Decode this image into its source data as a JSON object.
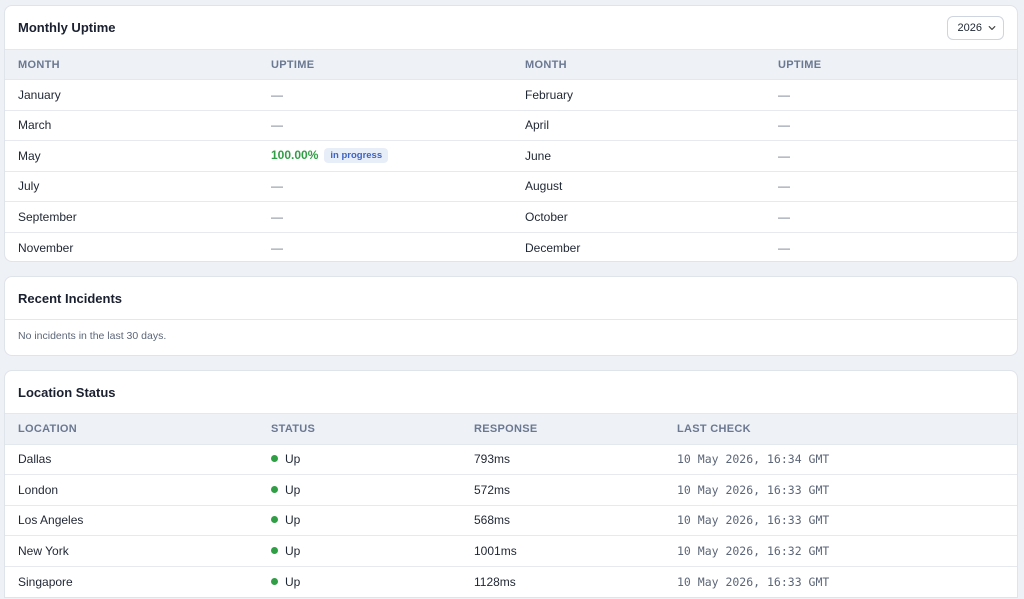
{
  "uptime": {
    "title": "Monthly Uptime",
    "year": "2026",
    "headers": [
      "MONTH",
      "UPTIME",
      "MONTH",
      "UPTIME"
    ],
    "rows": [
      {
        "m1": "January",
        "u1": "—",
        "m2": "February",
        "u2": "—"
      },
      {
        "m1": "March",
        "u1": "—",
        "m2": "April",
        "u2": "—"
      },
      {
        "m1": "May",
        "u1": "100.00%",
        "u1_badge": "in progress",
        "m2": "June",
        "u2": "—"
      },
      {
        "m1": "July",
        "u1": "—",
        "m2": "August",
        "u2": "—"
      },
      {
        "m1": "September",
        "u1": "—",
        "m2": "October",
        "u2": "—"
      },
      {
        "m1": "November",
        "u1": "—",
        "m2": "December",
        "u2": "—"
      }
    ]
  },
  "incidents": {
    "title": "Recent Incidents",
    "empty_text": "No incidents in the last 30 days."
  },
  "locations": {
    "title": "Location Status",
    "headers": [
      "LOCATION",
      "STATUS",
      "RESPONSE",
      "LAST CHECK"
    ],
    "rows": [
      {
        "location": "Dallas",
        "status": "Up",
        "response": "793ms",
        "last_check": "10 May 2026, 16:34 GMT"
      },
      {
        "location": "London",
        "status": "Up",
        "response": "572ms",
        "last_check": "10 May 2026, 16:33 GMT"
      },
      {
        "location": "Los Angeles",
        "status": "Up",
        "response": "568ms",
        "last_check": "10 May 2026, 16:33 GMT"
      },
      {
        "location": "New York",
        "status": "Up",
        "response": "1001ms",
        "last_check": "10 May 2026, 16:32 GMT"
      },
      {
        "location": "Singapore",
        "status": "Up",
        "response": "1128ms",
        "last_check": "10 May 2026, 16:33 GMT"
      }
    ]
  },
  "colors": {
    "up": "#2f9e44",
    "badge_text": "#3d63c7",
    "header_bg": "#eef2f7"
  }
}
